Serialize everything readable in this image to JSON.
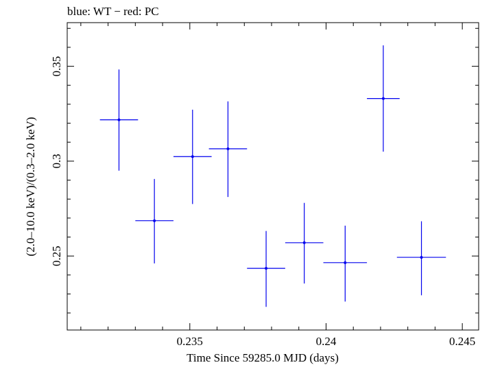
{
  "chart_data": {
    "type": "scatter",
    "title": "blue: WT − red: PC",
    "xlabel": "Time Since 59285.0 MJD (days)",
    "ylabel": "(2.0–10.0 keV)/(0.3–2.0 keV)",
    "xlim": [
      0.2305,
      0.2456
    ],
    "ylim": [
      0.211,
      0.373
    ],
    "x_ticks": [
      0.235,
      0.24,
      0.245
    ],
    "x_tick_labels": [
      "0.235",
      "0.24",
      "0.245"
    ],
    "y_ticks": [
      0.25,
      0.3,
      0.35
    ],
    "y_tick_labels": [
      "0.25",
      "0.3",
      "0.35"
    ],
    "series": [
      {
        "name": "WT",
        "color": "#0000ee",
        "points": [
          {
            "x": 0.2324,
            "y": 0.3218,
            "xerr": 0.0007,
            "yerr_lo": 0.0268,
            "yerr_hi": 0.0265
          },
          {
            "x": 0.2337,
            "y": 0.2686,
            "xerr": 0.0007,
            "yerr_lo": 0.0225,
            "yerr_hi": 0.022
          },
          {
            "x": 0.2351,
            "y": 0.3024,
            "xerr": 0.0007,
            "yerr_lo": 0.025,
            "yerr_hi": 0.0247
          },
          {
            "x": 0.2364,
            "y": 0.3065,
            "xerr": 0.0007,
            "yerr_lo": 0.0254,
            "yerr_hi": 0.025
          },
          {
            "x": 0.2378,
            "y": 0.2435,
            "xerr": 0.0007,
            "yerr_lo": 0.0203,
            "yerr_hi": 0.0197
          },
          {
            "x": 0.2392,
            "y": 0.257,
            "xerr": 0.0007,
            "yerr_lo": 0.0215,
            "yerr_hi": 0.021
          },
          {
            "x": 0.2407,
            "y": 0.2465,
            "xerr": 0.0008,
            "yerr_lo": 0.0205,
            "yerr_hi": 0.0195
          },
          {
            "x": 0.2421,
            "y": 0.333,
            "xerr": 0.0006,
            "yerr_lo": 0.028,
            "yerr_hi": 0.028
          },
          {
            "x": 0.2435,
            "y": 0.2493,
            "xerr": 0.0009,
            "yerr_lo": 0.02,
            "yerr_hi": 0.019
          }
        ]
      }
    ]
  }
}
